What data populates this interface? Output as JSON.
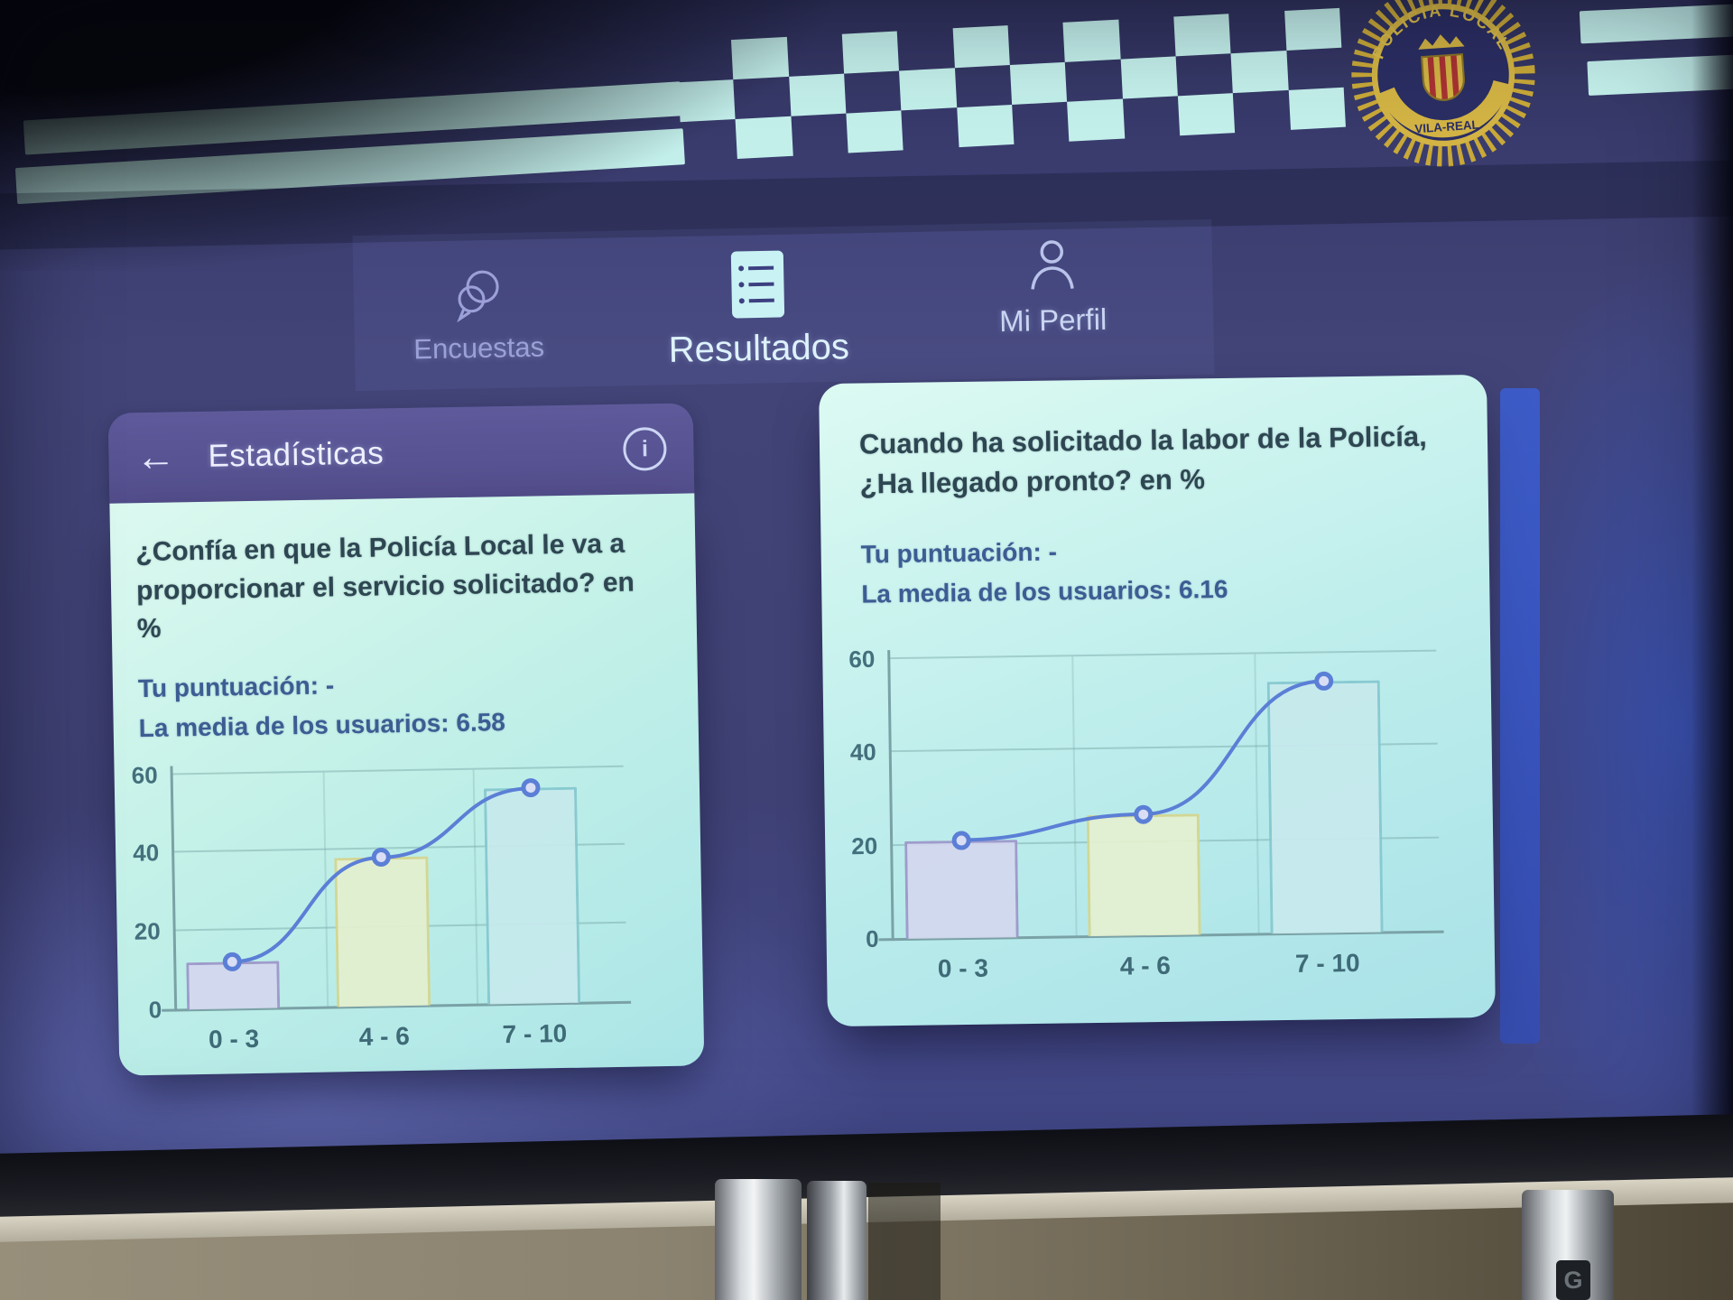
{
  "banner": {
    "badge": {
      "arc_text": "POLICIA LOCAL",
      "ribbon_text": "VILA-REAL"
    }
  },
  "nav": {
    "items": [
      {
        "label": "Encuestas",
        "icon": "chat-bubbles-icon",
        "active": false
      },
      {
        "label": "Resultados",
        "icon": "list-icon",
        "active": true
      },
      {
        "label": "Mi Perfil",
        "icon": "person-icon",
        "active": false
      }
    ]
  },
  "left_card": {
    "header": {
      "title": "Estadísticas"
    },
    "question": "¿Confía en que la Policía Local le va a proporcionar el servicio solicitado? en %",
    "your_score": "Tu puntuación: -",
    "average": "La media de los usuarios: 6.58"
  },
  "right_card": {
    "question": "Cuando ha solicitado la labor de la Policía, ¿Ha llegado pronto? en %",
    "your_score": "Tu puntuación: -",
    "average": "La media de los usuarios: 6.16"
  },
  "icons": {
    "back_arrow": "←",
    "info": "i",
    "stand_logo": "G"
  },
  "colors": {
    "banner_cyan": "#c3efeb",
    "badge_gold": "#d2b344",
    "header_purple": "#57538f",
    "line_blue": "#5b7fd6",
    "card_mint": "#c4f1e8"
  },
  "chart_data": [
    {
      "type": "bar",
      "title": "¿Confía en que la Policía Local le va a proporcionar el servicio solicitado? en %",
      "categories": [
        "0 - 3",
        "4 - 6",
        "7 - 10"
      ],
      "values": [
        12,
        38,
        55
      ],
      "line_overlay": [
        12,
        38,
        55
      ],
      "yticks": [
        0,
        20,
        40,
        60
      ],
      "ylim": [
        0,
        60
      ],
      "grid": true,
      "average_shown": 6.58,
      "bar_fills": [
        "#d4d8ef",
        "#e5f0d0",
        "#c7eaed"
      ],
      "bar_strokes": [
        "#9d96ca",
        "#d5d68d",
        "#85c8d0"
      ],
      "line_color": "#5b7fd6"
    },
    {
      "type": "bar",
      "title": "Cuando ha solicitado la labor de la Policía, ¿Ha llegado pronto? en %",
      "categories": [
        "0 - 3",
        "4 - 6",
        "7 - 10"
      ],
      "values": [
        21,
        26,
        54
      ],
      "line_overlay": [
        21,
        26,
        54
      ],
      "yticks": [
        0,
        20,
        40,
        60
      ],
      "ylim": [
        0,
        60
      ],
      "grid": true,
      "average_shown": 6.16,
      "bar_fills": [
        "#d4d8ef",
        "#e5f0d0",
        "#c7eaed"
      ],
      "bar_strokes": [
        "#9d96ca",
        "#d5d68d",
        "#85c8d0"
      ],
      "line_color": "#5b7fd6"
    }
  ]
}
